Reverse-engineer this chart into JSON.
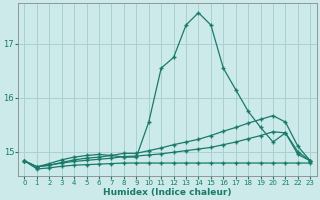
{
  "xlabel": "Humidex (Indice chaleur)",
  "bg_color": "#cceaea",
  "grid_color": "#aad0d0",
  "line_color": "#1a7a6a",
  "xlim": [
    -0.5,
    23.5
  ],
  "ylim": [
    14.55,
    17.75
  ],
  "yticks": [
    15,
    16,
    17
  ],
  "xticks": [
    0,
    1,
    2,
    3,
    4,
    5,
    6,
    7,
    8,
    9,
    10,
    11,
    12,
    13,
    14,
    15,
    16,
    17,
    18,
    19,
    20,
    21,
    22,
    23
  ],
  "series": [
    {
      "x": [
        0,
        1,
        2,
        3,
        4,
        5,
        6,
        7,
        8,
        9,
        10,
        11,
        12,
        13,
        14,
        15,
        16,
        17,
        18,
        19,
        20,
        21,
        22,
        23
      ],
      "y": [
        14.83,
        14.72,
        14.78,
        14.85,
        14.9,
        14.93,
        14.95,
        14.93,
        14.9,
        14.9,
        15.55,
        16.55,
        16.75,
        17.35,
        17.58,
        17.35,
        16.55,
        16.15,
        15.75,
        15.45,
        15.18,
        15.35,
        14.95,
        14.83
      ]
    },
    {
      "x": [
        0,
        1,
        2,
        3,
        4,
        5,
        6,
        7,
        8,
        9,
        10,
        11,
        12,
        13,
        14,
        15,
        16,
        17,
        18,
        19,
        20,
        21,
        22,
        23
      ],
      "y": [
        14.83,
        14.72,
        14.75,
        14.8,
        14.85,
        14.88,
        14.9,
        14.93,
        14.97,
        14.97,
        15.02,
        15.07,
        15.13,
        15.18,
        15.23,
        15.3,
        15.38,
        15.45,
        15.53,
        15.6,
        15.67,
        15.55,
        15.1,
        14.83
      ]
    },
    {
      "x": [
        0,
        1,
        2,
        3,
        4,
        5,
        6,
        7,
        8,
        9,
        10,
        11,
        12,
        13,
        14,
        15,
        16,
        17,
        18,
        19,
        20,
        21,
        22,
        23
      ],
      "y": [
        14.83,
        14.72,
        14.75,
        14.79,
        14.82,
        14.84,
        14.86,
        14.88,
        14.91,
        14.92,
        14.94,
        14.96,
        14.99,
        15.02,
        15.05,
        15.08,
        15.13,
        15.18,
        15.24,
        15.3,
        15.37,
        15.35,
        15.0,
        14.83
      ]
    },
    {
      "x": [
        0,
        1,
        2,
        3,
        4,
        5,
        6,
        7,
        8,
        9,
        10,
        11,
        12,
        13,
        14,
        15,
        16,
        17,
        18,
        19,
        20,
        21,
        22,
        23
      ],
      "y": [
        14.83,
        14.68,
        14.7,
        14.73,
        14.75,
        14.76,
        14.77,
        14.78,
        14.79,
        14.79,
        14.79,
        14.79,
        14.79,
        14.79,
        14.79,
        14.79,
        14.79,
        14.79,
        14.79,
        14.79,
        14.79,
        14.79,
        14.79,
        14.79
      ]
    }
  ]
}
